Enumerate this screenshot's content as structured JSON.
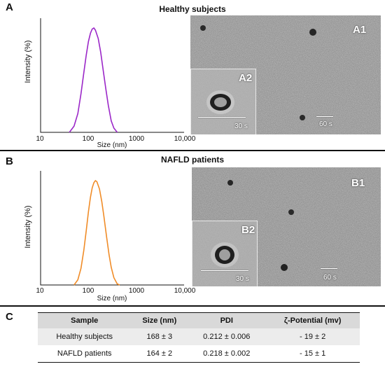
{
  "panel_a": {
    "letter": "A",
    "title": "Healthy subjects",
    "tem_label": "A1",
    "inset_label": "A2",
    "scale_main": "60 s",
    "scale_inset": "30 s"
  },
  "panel_b": {
    "letter": "B",
    "title": "NAFLD patients",
    "tem_label": "B1",
    "inset_label": "B2",
    "scale_main": "60 s",
    "scale_inset": "30 s"
  },
  "panel_c": {
    "letter": "C",
    "headers": [
      "Sample",
      "Size (nm)",
      "PDI",
      "ζ-Potential (mv)"
    ],
    "rows": [
      [
        "Healthy subjects",
        "168 ± 3",
        "0.212 ± 0.006",
        "- 19 ± 2"
      ],
      [
        "NAFLD patients",
        "164 ± 2",
        "0.218 ± 0.002",
        "- 15 ± 1"
      ]
    ]
  },
  "chart_data": [
    {
      "type": "line",
      "title": "",
      "xlabel": "Size (nm)",
      "ylabel": "Intensity (%)",
      "xscale": "log",
      "xlim": [
        10,
        10000
      ],
      "xticks": [
        "10",
        "100",
        "1000",
        "10,000"
      ],
      "ylim": [
        0,
        1
      ],
      "grid": false,
      "color": "#9b27c8",
      "series": [
        {
          "x": [
            40,
            50,
            60,
            70,
            80,
            90,
            100,
            110,
            120,
            130,
            140,
            160,
            180,
            200,
            230,
            260,
            300,
            340,
            400
          ],
          "y": [
            0.0,
            0.06,
            0.18,
            0.37,
            0.57,
            0.74,
            0.87,
            0.95,
            0.99,
            1.0,
            0.98,
            0.9,
            0.77,
            0.62,
            0.42,
            0.26,
            0.11,
            0.04,
            0.0
          ]
        }
      ]
    },
    {
      "type": "line",
      "title": "",
      "xlabel": "Size (nm)",
      "ylabel": "Intensity (%)",
      "xscale": "log",
      "xlim": [
        10,
        10000
      ],
      "xticks": [
        "10",
        "100",
        "1000",
        "10,000"
      ],
      "ylim": [
        0,
        1
      ],
      "grid": false,
      "color": "#f08c28",
      "series": [
        {
          "x": [
            50,
            60,
            70,
            80,
            90,
            100,
            110,
            120,
            130,
            140,
            150,
            170,
            190,
            210,
            240,
            270,
            300,
            340,
            400,
            450
          ],
          "y": [
            0.0,
            0.05,
            0.16,
            0.33,
            0.52,
            0.7,
            0.84,
            0.93,
            0.98,
            1.0,
            0.99,
            0.92,
            0.8,
            0.66,
            0.46,
            0.29,
            0.17,
            0.07,
            0.01,
            0.0
          ]
        }
      ]
    }
  ]
}
